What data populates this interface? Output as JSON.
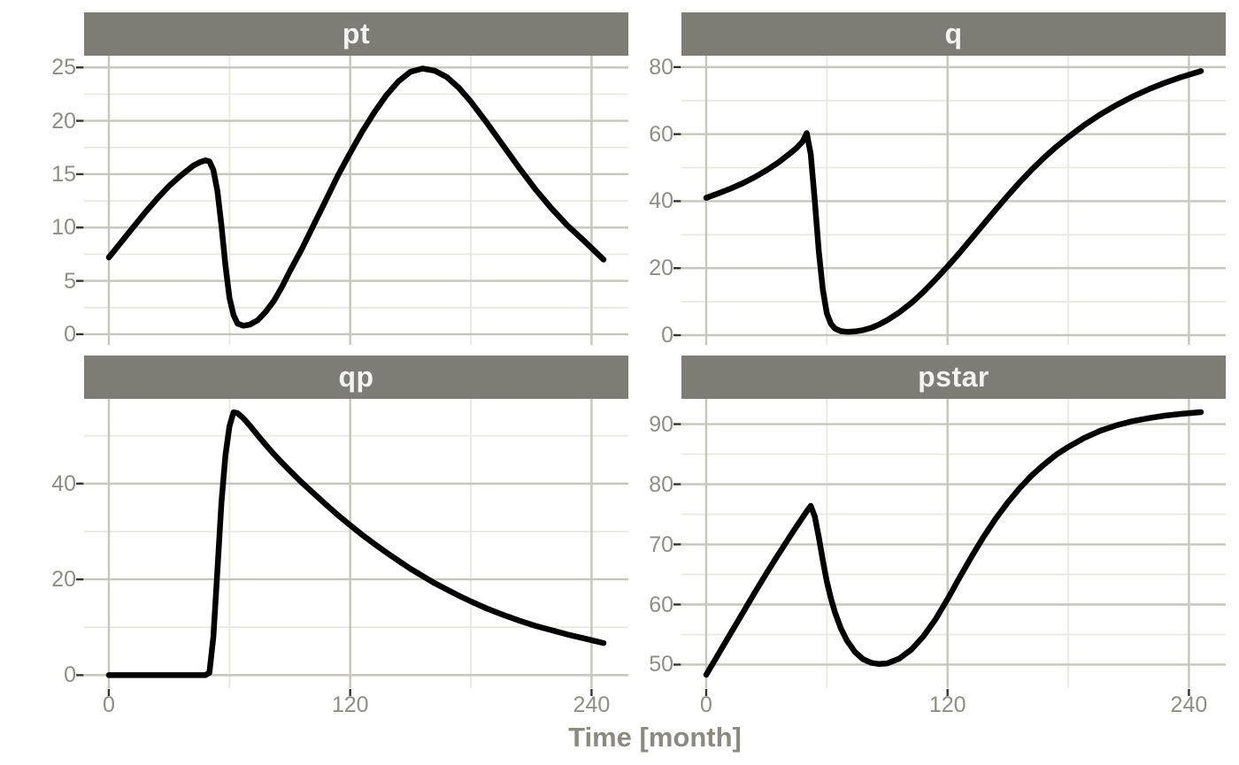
{
  "figure": {
    "axis_title": "Time [month]",
    "colors": {
      "background": "#ffffff",
      "strip_bg": "#7d7d76",
      "strip_text": "#f4f4ee",
      "grid_major": "#c6c6bc",
      "grid_minor": "#e8e8df",
      "tick_label": "#8e8e86",
      "tick_mark": "#33332e",
      "axis_title": "#8a8a81",
      "line": "#000000"
    },
    "line_width": 6.5,
    "grid": "on",
    "legend": "none"
  },
  "chart_data": [
    {
      "type": "line",
      "facet": "pt",
      "xlabel": "Time [month]",
      "xlim": [
        -12.3,
        258.3
      ],
      "xticks": [
        0,
        120,
        240
      ],
      "xticks_minor": [
        60,
        180
      ],
      "ylim": [
        -1.0,
        26.1
      ],
      "yticks": [
        0,
        5,
        10,
        15,
        20,
        25
      ],
      "yticks_minor": [
        2.5,
        7.5,
        12.5,
        17.5,
        22.5
      ],
      "show_x_axis": false,
      "x": [
        0,
        6,
        12,
        18,
        24,
        30,
        36,
        42,
        45,
        48,
        50,
        52,
        54,
        56,
        58,
        60,
        62,
        64,
        67,
        70,
        74,
        78,
        82,
        86,
        90,
        96,
        102,
        108,
        114,
        120,
        126,
        132,
        138,
        144,
        150,
        156,
        162,
        168,
        174,
        180,
        188,
        196,
        204,
        212,
        220,
        228,
        236,
        246
      ],
      "y": [
        7.2,
        8.6,
        10.0,
        11.4,
        12.7,
        13.9,
        14.9,
        15.8,
        16.1,
        16.3,
        16.2,
        15.4,
        13.4,
        10.2,
        6.4,
        3.4,
        1.8,
        1.0,
        0.8,
        0.9,
        1.3,
        2.1,
        3.1,
        4.4,
        5.9,
        8.0,
        10.3,
        12.6,
        14.9,
        17.0,
        19.0,
        20.8,
        22.4,
        23.7,
        24.6,
        24.9,
        24.7,
        24.1,
        23.1,
        21.8,
        19.8,
        17.7,
        15.6,
        13.6,
        11.8,
        10.2,
        8.8,
        7.0
      ]
    },
    {
      "type": "line",
      "facet": "q",
      "xlabel": "Time [month]",
      "xlim": [
        -12.3,
        258.3
      ],
      "xticks": [
        0,
        120,
        240
      ],
      "xticks_minor": [
        60,
        180
      ],
      "ylim": [
        -2.9,
        83.4
      ],
      "yticks": [
        0,
        20,
        40,
        60,
        80
      ],
      "yticks_minor": [
        10,
        30,
        50,
        70
      ],
      "show_x_axis": false,
      "x": [
        0,
        6,
        12,
        18,
        24,
        30,
        36,
        42,
        45,
        48,
        50,
        52,
        54,
        56,
        58,
        60,
        62,
        64,
        67,
        70,
        74,
        78,
        82,
        86,
        90,
        96,
        102,
        108,
        114,
        120,
        126,
        132,
        138,
        144,
        150,
        156,
        162,
        168,
        174,
        180,
        188,
        196,
        204,
        212,
        220,
        228,
        236,
        246
      ],
      "y": [
        41.0,
        42.3,
        43.7,
        45.3,
        47.1,
        49.2,
        51.6,
        54.4,
        55.9,
        57.8,
        60.3,
        54.0,
        40.0,
        25.0,
        13.5,
        6.5,
        3.4,
        2.0,
        1.2,
        1.0,
        1.1,
        1.5,
        2.2,
        3.2,
        4.5,
        6.8,
        9.6,
        12.9,
        16.6,
        20.5,
        24.6,
        28.9,
        33.2,
        37.5,
        41.7,
        45.7,
        49.5,
        53.0,
        56.2,
        59.1,
        62.7,
        65.9,
        68.7,
        71.2,
        73.4,
        75.3,
        77.0,
        78.8
      ]
    },
    {
      "type": "line",
      "facet": "qp",
      "xlabel": "Time [month]",
      "xlim": [
        -12.3,
        258.3
      ],
      "xticks": [
        0,
        120,
        240
      ],
      "xticks_minor": [
        60,
        180
      ],
      "ylim": [
        -2.7,
        57.7
      ],
      "yticks": [
        0,
        20,
        40
      ],
      "yticks_minor": [
        10,
        30,
        50
      ],
      "show_x_axis": true,
      "x": [
        0,
        6,
        12,
        18,
        24,
        30,
        36,
        42,
        45,
        48,
        50,
        52,
        54,
        56,
        58,
        60,
        62,
        64,
        67,
        70,
        74,
        78,
        82,
        86,
        90,
        96,
        102,
        108,
        114,
        120,
        126,
        132,
        138,
        144,
        150,
        156,
        162,
        168,
        174,
        180,
        188,
        196,
        204,
        212,
        220,
        228,
        236,
        246
      ],
      "y": [
        0,
        0,
        0,
        0,
        0,
        0,
        0,
        0,
        0,
        0,
        0.5,
        8,
        22,
        36,
        46,
        52,
        54.9,
        54.7,
        53.6,
        52.2,
        50.1,
        48.1,
        46.2,
        44.4,
        42.7,
        40.2,
        37.9,
        35.6,
        33.4,
        31.3,
        29.3,
        27.4,
        25.6,
        23.9,
        22.2,
        20.7,
        19.2,
        17.9,
        16.6,
        15.4,
        13.9,
        12.6,
        11.4,
        10.3,
        9.4,
        8.5,
        7.7,
        6.7
      ]
    },
    {
      "type": "line",
      "facet": "pstar",
      "xlabel": "Time [month]",
      "xlim": [
        -12.3,
        258.3
      ],
      "xticks": [
        0,
        120,
        240
      ],
      "xticks_minor": [
        60,
        180
      ],
      "ylim": [
        46.1,
        94.2
      ],
      "yticks": [
        50,
        60,
        70,
        80,
        90
      ],
      "yticks_minor": [
        55,
        65,
        75,
        85
      ],
      "show_x_axis": true,
      "x": [
        0,
        6,
        12,
        18,
        24,
        30,
        36,
        42,
        45,
        48,
        50,
        52,
        54,
        56,
        58,
        60,
        62,
        64,
        67,
        70,
        74,
        78,
        82,
        86,
        90,
        96,
        102,
        108,
        114,
        120,
        126,
        132,
        138,
        144,
        150,
        156,
        162,
        168,
        174,
        180,
        188,
        196,
        204,
        212,
        220,
        228,
        236,
        246
      ],
      "y": [
        48.3,
        51.7,
        55.1,
        58.5,
        61.9,
        65.2,
        68.4,
        71.5,
        73.0,
        74.5,
        75.5,
        76.4,
        74.6,
        71.2,
        67.3,
        63.8,
        61.0,
        58.7,
        56.0,
        54.0,
        52.1,
        50.9,
        50.3,
        50.1,
        50.2,
        51.0,
        52.5,
        54.7,
        57.5,
        60.9,
        64.5,
        68.0,
        71.3,
        74.3,
        77.0,
        79.4,
        81.5,
        83.3,
        84.9,
        86.2,
        87.7,
        88.9,
        89.8,
        90.5,
        91.0,
        91.4,
        91.7,
        92.0
      ]
    }
  ]
}
